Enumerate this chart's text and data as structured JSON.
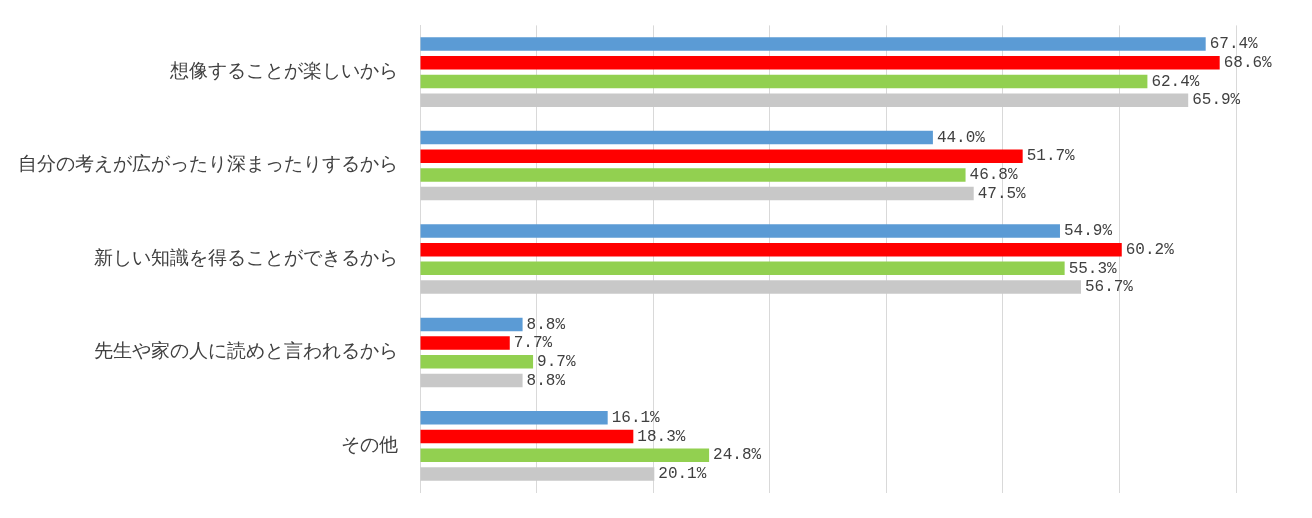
{
  "chart_data": {
    "type": "bar",
    "orientation": "horizontal",
    "categories": [
      "想像することが楽しいから",
      "自分の考えが広がったり深まったりするから",
      "新しい知識を得ることができるから",
      "先生や家の人に読めと言われるから",
      "その他"
    ],
    "series": [
      {
        "color": "#5b9bd5",
        "values": [
          67.4,
          44.0,
          54.9,
          8.8,
          16.1
        ],
        "value_labels": [
          "67.4%",
          "44.0%",
          "54.9%",
          "8.8%",
          "16.1%"
        ]
      },
      {
        "color": "#ff0000",
        "values": [
          68.6,
          51.7,
          60.2,
          7.7,
          18.3
        ],
        "value_labels": [
          "68.6%",
          "51.7%",
          "60.2%",
          "7.7%",
          "18.3%"
        ]
      },
      {
        "color": "#92d050",
        "values": [
          62.4,
          46.8,
          55.3,
          9.7,
          24.8
        ],
        "value_labels": [
          "62.4%",
          "46.8%",
          "55.3%",
          "9.7%",
          "24.8%"
        ]
      },
      {
        "color": "#c8c8c8",
        "values": [
          65.9,
          47.5,
          56.7,
          8.8,
          20.1
        ],
        "value_labels": [
          "65.9%",
          "47.5%",
          "56.7%",
          "8.8%",
          "20.1%"
        ]
      }
    ],
    "xlim": [
      0,
      70
    ],
    "xticks": [
      {
        "value": 0,
        "label": null
      },
      {
        "value": 10,
        "label": null
      },
      {
        "value": 20,
        "label": null
      },
      {
        "value": 30,
        "label": null
      },
      {
        "value": 40,
        "label": null
      },
      {
        "value": 50,
        "label": null
      },
      {
        "value": 60,
        "label": null
      },
      {
        "value": 70,
        "label": null
      }
    ],
    "grid": "x",
    "legend": false,
    "tick_labels": "y"
  }
}
